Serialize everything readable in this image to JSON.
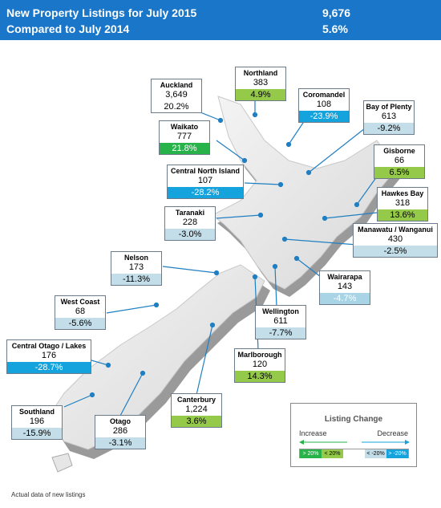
{
  "header": {
    "line1_label": "New Property Listings for July 2015",
    "line1_value": "9,676",
    "line2_label": "Compared to July 2014",
    "line2_value": "5.6%"
  },
  "regions": {
    "northland": {
      "name": "Northland",
      "count": "383",
      "change": "4.9%",
      "band": "inc-light"
    },
    "auckland": {
      "name": "Auckland",
      "count": "3,649",
      "change": "20.2%",
      "band": "none"
    },
    "coromandel": {
      "name": "Coromandel",
      "count": "108",
      "change": "-23.9%",
      "band": "dec-dark"
    },
    "bay_of_plenty": {
      "name": "Bay of Plenty",
      "count": "613",
      "change": "-9.2%",
      "band": "dec-light"
    },
    "waikato": {
      "name": "Waikato",
      "count": "777",
      "change": "21.8%",
      "band": "inc-dark"
    },
    "gisborne": {
      "name": "Gisborne",
      "count": "66",
      "change": "6.5%",
      "band": "inc-light"
    },
    "central_north_island": {
      "name": "Central North Island",
      "count": "107",
      "change": "-28.2%",
      "band": "dec-dark"
    },
    "hawkes_bay": {
      "name": "Hawkes Bay",
      "count": "318",
      "change": "13.6%",
      "band": "inc-light"
    },
    "taranaki": {
      "name": "Taranaki",
      "count": "228",
      "change": "-3.0%",
      "band": "dec-light"
    },
    "manawatu": {
      "name": "Manawatu / Wanganui",
      "count": "430",
      "change": "-2.5%",
      "band": "dec-light"
    },
    "nelson": {
      "name": "Nelson",
      "count": "173",
      "change": "-11.3%",
      "band": "dec-light"
    },
    "wairarapa": {
      "name": "Wairarapa",
      "count": "143",
      "change": "-4.7%",
      "band": "dec-mid"
    },
    "west_coast": {
      "name": "West Coast",
      "count": "68",
      "change": "-5.6%",
      "band": "dec-light"
    },
    "wellington": {
      "name": "Wellington",
      "count": "611",
      "change": "-7.7%",
      "band": "dec-light"
    },
    "central_otago": {
      "name": "Central Otago / Lakes",
      "count": "176",
      "change": "-28.7%",
      "band": "dec-dark"
    },
    "marlborough": {
      "name": "Marlborough",
      "count": "120",
      "change": "14.3%",
      "band": "inc-light"
    },
    "canterbury": {
      "name": "Canterbury",
      "count": "1,224",
      "change": "3.6%",
      "band": "inc-light"
    },
    "southland": {
      "name": "Southland",
      "count": "196",
      "change": "-15.9%",
      "band": "dec-light"
    },
    "otago": {
      "name": "Otago",
      "count": "286",
      "change": "-3.1%",
      "band": "dec-light"
    }
  },
  "legend": {
    "title": "Listing Change",
    "increase_label": "Increase",
    "decrease_label": "Decrease",
    "swatch_gt20": "> 20%",
    "swatch_lt20": "< 20%",
    "swatch_neg_lt20": "< -20%",
    "swatch_neg_gt20": "> -20%",
    "colors": {
      "inc_dark": "#27b34a",
      "inc_light": "#95c949",
      "dec_light": "#c3dee9",
      "dec_dark": "#15a3dd"
    }
  },
  "footer": "Actual data of new listings"
}
